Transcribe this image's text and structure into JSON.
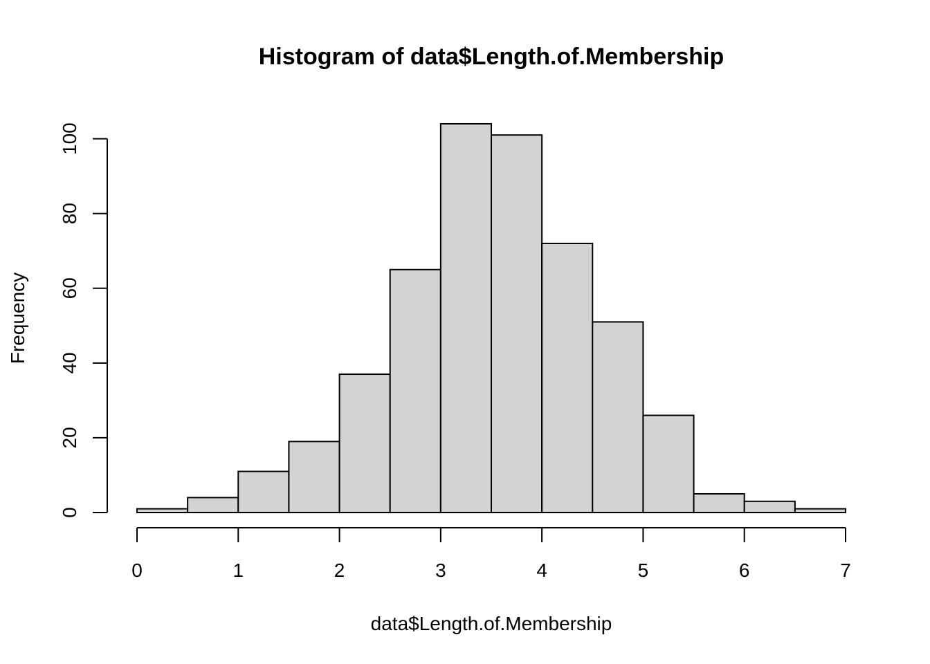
{
  "chart_data": {
    "type": "bar",
    "title": "Histogram of data$Length.of.Membership",
    "xlabel": "data$Length.of.Membership",
    "ylabel": "Frequency",
    "bin_edges": [
      0,
      0.5,
      1,
      1.5,
      2,
      2.5,
      3,
      3.5,
      4,
      4.5,
      5,
      5.5,
      6,
      6.5,
      7
    ],
    "values": [
      1,
      4,
      11,
      19,
      37,
      65,
      104,
      101,
      72,
      51,
      26,
      5,
      3,
      1
    ],
    "xlim": [
      0,
      7
    ],
    "ylim": [
      0,
      104
    ],
    "x_ticks": [
      0,
      1,
      2,
      3,
      4,
      5,
      6,
      7
    ],
    "x_tick_labels": [
      "0",
      "1",
      "2",
      "3",
      "4",
      "5",
      "6",
      "7"
    ],
    "y_ticks": [
      0,
      20,
      40,
      60,
      80,
      100
    ],
    "y_tick_labels": [
      "0",
      "20",
      "40",
      "60",
      "80",
      "100"
    ],
    "grid": false,
    "bar_color": "#d3d3d3",
    "border_color": "#000000"
  }
}
